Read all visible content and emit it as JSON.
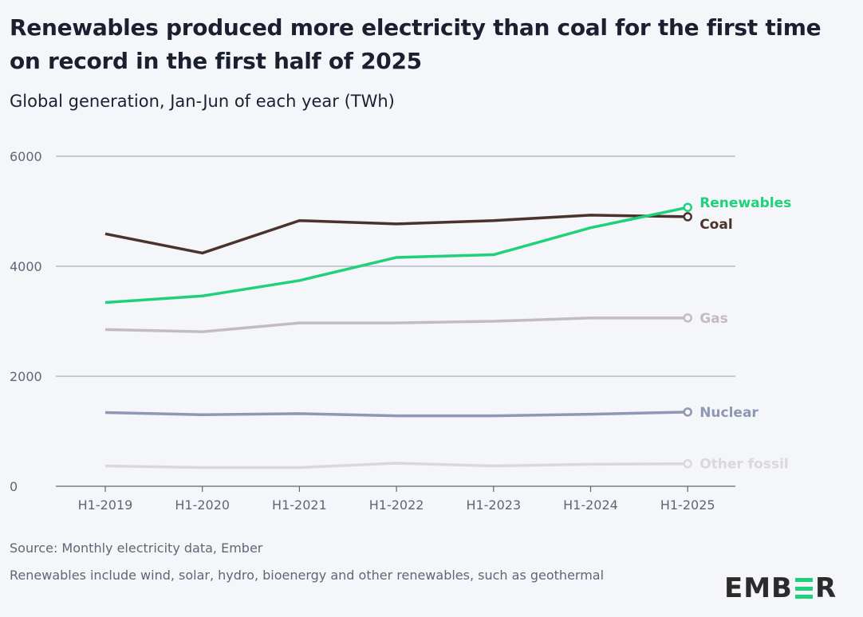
{
  "title": "Renewables produced more electricity than coal for the first time on record in the first half of 2025",
  "subtitle": "Global generation, Jan-Jun of each year (TWh)",
  "footer": {
    "source": "Source: Monthly electricity data, Ember",
    "note": "Renewables include wind, solar, hydro, bioenergy and other renewables, such as geothermal"
  },
  "logo": "EMBER",
  "colors": {
    "background": "#f4f6fa",
    "logo_accent": "#1fd17a"
  },
  "chart_data": {
    "type": "line",
    "title": "Renewables produced more electricity than coal for the first time on record in the first half of 2025",
    "subtitle": "Global generation, Jan-Jun of each year (TWh)",
    "categories": [
      "H1-2019",
      "H1-2020",
      "H1-2021",
      "H1-2022",
      "H1-2023",
      "H1-2024",
      "H1-2025"
    ],
    "ylim": [
      0,
      6000
    ],
    "yticks": [
      0,
      2000,
      4000,
      6000
    ],
    "grid": true,
    "legend": "direct labels at line ends (right)",
    "series": [
      {
        "name": "Coal",
        "color": "#4a332d",
        "values": [
          4590,
          4240,
          4830,
          4770,
          4830,
          4930,
          4900
        ]
      },
      {
        "name": "Renewables",
        "color": "#1fd17a",
        "values": [
          3340,
          3460,
          3740,
          4160,
          4210,
          4700,
          5070
        ]
      },
      {
        "name": "Gas",
        "color": "#c4bcbc",
        "values": [
          2850,
          2810,
          2970,
          2970,
          3000,
          3060,
          3060
        ]
      },
      {
        "name": "Nuclear",
        "color": "#8f98b3",
        "values": [
          1340,
          1300,
          1320,
          1280,
          1280,
          1310,
          1350
        ]
      },
      {
        "name": "Other fossil",
        "color": "#d9d9dd",
        "values": [
          370,
          340,
          340,
          420,
          370,
          400,
          410
        ]
      }
    ]
  }
}
